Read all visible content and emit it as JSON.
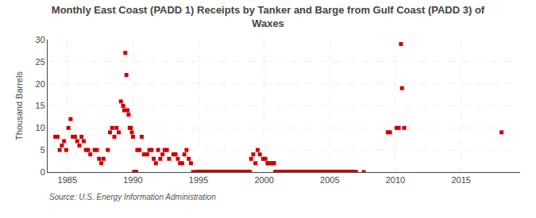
{
  "chart_data": {
    "type": "scatter",
    "title": "Monthly East Coast (PADD 1) Receipts by Tanker and Barge from Gulf Coast (PADD 3) of\nWaxes",
    "ylabel": "Thousand Barrels",
    "annotations": [
      "Source: U.S. Energy Information Administration"
    ],
    "color": "#cc0000",
    "marker": "square",
    "grid": true,
    "xlim": [
      1983.5,
      2019.5
    ],
    "xticks": [
      1985,
      1990,
      1995,
      2000,
      2005,
      2010,
      2015
    ],
    "ylim": [
      0,
      30
    ],
    "yticks": [
      0,
      5,
      10,
      15,
      20,
      25,
      30
    ],
    "x": [
      1984.083,
      1984.25,
      1984.417,
      1984.583,
      1984.75,
      1984.917,
      1985.083,
      1985.25,
      1985.417,
      1985.583,
      1985.75,
      1985.917,
      1986.083,
      1986.25,
      1986.417,
      1986.583,
      1986.75,
      1987.083,
      1987.25,
      1987.417,
      1987.583,
      1987.75,
      1988.083,
      1988.25,
      1988.417,
      1988.583,
      1988.75,
      1988.917,
      1989.083,
      1989.25,
      1989.33,
      1989.417,
      1989.5,
      1989.583,
      1989.667,
      1989.75,
      1989.833,
      1989.917,
      1990.0,
      1990.083,
      1990.167,
      1990.25,
      1990.333,
      1990.5,
      1990.667,
      1990.833,
      1991.083,
      1991.25,
      1991.417,
      1991.583,
      1991.75,
      1991.917,
      1992.083,
      1992.25,
      1992.417,
      1992.583,
      1992.75,
      1993.083,
      1993.25,
      1993.417,
      1993.583,
      1993.75,
      1993.917,
      1994.083,
      1994.25,
      1994.417,
      1994.583,
      1994.75,
      1994.917,
      1995.0,
      1995.083,
      1995.167,
      1995.25,
      1995.333,
      1995.417,
      1995.5,
      1995.583,
      1995.667,
      1995.75,
      1995.833,
      1995.917,
      1996.0,
      1996.083,
      1996.167,
      1996.25,
      1996.333,
      1996.417,
      1996.5,
      1996.583,
      1996.667,
      1996.75,
      1996.833,
      1996.917,
      1997.0,
      1997.083,
      1997.167,
      1997.25,
      1997.333,
      1997.417,
      1997.5,
      1997.583,
      1997.667,
      1997.75,
      1997.833,
      1997.917,
      1998.0,
      1998.083,
      1998.167,
      1998.25,
      1998.333,
      1998.417,
      1998.5,
      1998.583,
      1998.667,
      1998.75,
      1998.833,
      1998.917,
      1999.0,
      1999.167,
      1999.333,
      1999.5,
      1999.667,
      1999.917,
      2000.083,
      2000.25,
      2000.333,
      2000.5,
      2000.667,
      2000.75,
      2000.833,
      2000.917,
      2001.0,
      2001.083,
      2001.167,
      2001.25,
      2001.333,
      2001.417,
      2001.5,
      2001.583,
      2001.667,
      2001.75,
      2001.833,
      2001.917,
      2002.0,
      2002.083,
      2002.167,
      2002.25,
      2002.333,
      2002.417,
      2002.5,
      2002.583,
      2002.667,
      2002.75,
      2002.833,
      2002.917,
      2003.0,
      2003.083,
      2003.167,
      2003.25,
      2003.333,
      2003.417,
      2003.5,
      2003.583,
      2003.667,
      2003.75,
      2003.833,
      2003.917,
      2004.0,
      2004.083,
      2004.167,
      2004.25,
      2004.333,
      2004.417,
      2004.5,
      2004.583,
      2004.667,
      2004.75,
      2004.833,
      2004.917,
      2005.0,
      2005.083,
      2005.167,
      2005.25,
      2005.333,
      2005.417,
      2005.5,
      2005.583,
      2005.667,
      2005.75,
      2005.833,
      2005.917,
      2006.0,
      2006.083,
      2006.167,
      2006.25,
      2006.333,
      2006.417,
      2006.5,
      2006.583,
      2006.667,
      2006.75,
      2006.833,
      2006.917,
      2007.0,
      2007.583,
      2009.417,
      2009.583,
      2010.083,
      2010.25,
      2010.417,
      2010.5,
      2010.667,
      2018.083
    ],
    "values": [
      8,
      8,
      5,
      6,
      7,
      5,
      10,
      12,
      8,
      8,
      7,
      6,
      8,
      7,
      5,
      5,
      4,
      5,
      5,
      3,
      2,
      3,
      5,
      9,
      10,
      8,
      10,
      9,
      16,
      15,
      14,
      27,
      22,
      14,
      13,
      10,
      10,
      9,
      8,
      0,
      0,
      0,
      5,
      5,
      8,
      4,
      4,
      5,
      5,
      3,
      2,
      5,
      3,
      4,
      5,
      5,
      3,
      4,
      4,
      3,
      2,
      2,
      4,
      5,
      3,
      2,
      0,
      0,
      0,
      0,
      0,
      0,
      0,
      0,
      0,
      0,
      0,
      0,
      0,
      0,
      0,
      0,
      0,
      0,
      0,
      0,
      0,
      0,
      0,
      0,
      0,
      0,
      0,
      0,
      0,
      0,
      0,
      0,
      0,
      0,
      0,
      0,
      0,
      0,
      0,
      0,
      0,
      0,
      0,
      0,
      0,
      0,
      0,
      0,
      0,
      0,
      0,
      3,
      4,
      2,
      5,
      4,
      3,
      3,
      2,
      2,
      2,
      2,
      2,
      0,
      0,
      0,
      0,
      0,
      0,
      0,
      0,
      0,
      0,
      0,
      0,
      0,
      0,
      0,
      0,
      0,
      0,
      0,
      0,
      0,
      0,
      0,
      0,
      0,
      0,
      0,
      0,
      0,
      0,
      0,
      0,
      0,
      0,
      0,
      0,
      0,
      0,
      0,
      0,
      0,
      0,
      0,
      0,
      0,
      0,
      0,
      0,
      0,
      0,
      0,
      0,
      0,
      0,
      0,
      0,
      0,
      0,
      0,
      0,
      0,
      0,
      0,
      0,
      0,
      0,
      0,
      0,
      0,
      0,
      0,
      0,
      0,
      0,
      0,
      0,
      9,
      9,
      10,
      10,
      29,
      19,
      10,
      9
    ]
  }
}
